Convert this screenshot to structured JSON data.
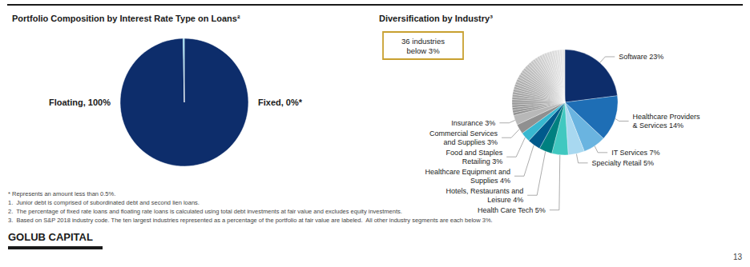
{
  "chart_data": [
    {
      "type": "pie",
      "title": "Portfolio Composition by Interest Rate Type on Loans²",
      "categories": [
        "Floating, 100%",
        "Fixed, 0%*"
      ],
      "values": [
        99.7,
        0.3
      ],
      "colors": [
        "#0d2d6b",
        "#5bc8e8"
      ]
    },
    {
      "type": "pie",
      "title": "Diversification by Industry³",
      "categories": [
        "Software 23%",
        "Healthcare Providers\n& Services 14%",
        "IT Services 7%",
        "Specialty Retail 5%",
        "Health Care Tech 5%",
        "Hotels, Restaurants and\nLeisure 4%",
        "Healthcare Equipment and\nSupplies 4%",
        "Food and Staples\nRetailing 3%",
        "Commercial Services\nand Supplies 3%",
        "Insurance 3%",
        null,
        null,
        null,
        null,
        null,
        null,
        null,
        null,
        null,
        null,
        null,
        null,
        null,
        null,
        null,
        null,
        null,
        null,
        null,
        null,
        null,
        null,
        null,
        null,
        null,
        null,
        null,
        null,
        null,
        null,
        null,
        null,
        null,
        null,
        null,
        null
      ],
      "values": [
        23,
        14,
        7,
        5,
        5,
        4,
        4,
        3,
        3,
        3,
        0.8055555555555556,
        0.8055555555555556,
        0.8055555555555556,
        0.8055555555555556,
        0.8055555555555556,
        0.8055555555555556,
        0.8055555555555556,
        0.8055555555555556,
        0.8055555555555556,
        0.8055555555555556,
        0.8055555555555556,
        0.8055555555555556,
        0.8055555555555556,
        0.8055555555555556,
        0.8055555555555556,
        0.8055555555555556,
        0.8055555555555556,
        0.8055555555555556,
        0.8055555555555556,
        0.8055555555555556,
        0.8055555555555556,
        0.8055555555555556,
        0.8055555555555556,
        0.8055555555555556,
        0.8055555555555556,
        0.8055555555555556,
        0.8055555555555556,
        0.8055555555555556,
        0.8055555555555556,
        0.8055555555555556,
        0.8055555555555556,
        0.8055555555555556,
        0.8055555555555556,
        0.8055555555555556,
        0.8055555555555556,
        0.8055555555555556
      ],
      "colors": [
        "#0d2d6b",
        "#1e6eb5",
        "#6ab4e0",
        "#a8d8f0",
        "#40c8c0",
        "#008080",
        "#005a8c",
        "#38b8d0",
        "#909090",
        "#b8b8b8",
        "#919191",
        "#939393",
        "#959595",
        "#989898",
        "#9a9a9a",
        "#9d9d9d",
        "#9f9f9f",
        "#a2a2a2",
        "#a4a4a4",
        "#a6a6a6",
        "#a9a9a9",
        "#ababab",
        "#aeaeae",
        "#b0b0b0",
        "#b3b3b3",
        "#b5b5b5",
        "#b7b7b7",
        "#bababa",
        "#bcbcbc",
        "#bfbfbf",
        "#c1c1c1",
        "#c4c4c4",
        "#c6c6c6",
        "#c8c8c8",
        "#cbcbcb",
        "#cdcdcd",
        "#d0d0d0",
        "#d2d2d2",
        "#d5d5d5",
        "#d7d7d7",
        "#d9d9d9",
        "#dcdcdc",
        "#dedede",
        "#e1e1e1",
        "#e3e3e3",
        "#e6e6e6"
      ],
      "annotations": [
        {
          "text": "36 industries\nbelow 3%",
          "color": "#c8a030"
        }
      ]
    }
  ],
  "footnotes": [
    "* Represents an amount less than 0.5%.",
    "1.  Junior debt is comprised of subordinated debt and second lien loans.",
    "2.  The percentage of fixed rate loans and floating rate loans is calculated using total debt investments at fair value and excludes equity investments.",
    "3.  Based on S&P 2018 industry code. The ten largest industries represented as a percentage of the portfolio at fair value are labeled.  All other industry segments are each below 3%."
  ],
  "brand": "GOLUB CAPITAL",
  "page_number": "13"
}
